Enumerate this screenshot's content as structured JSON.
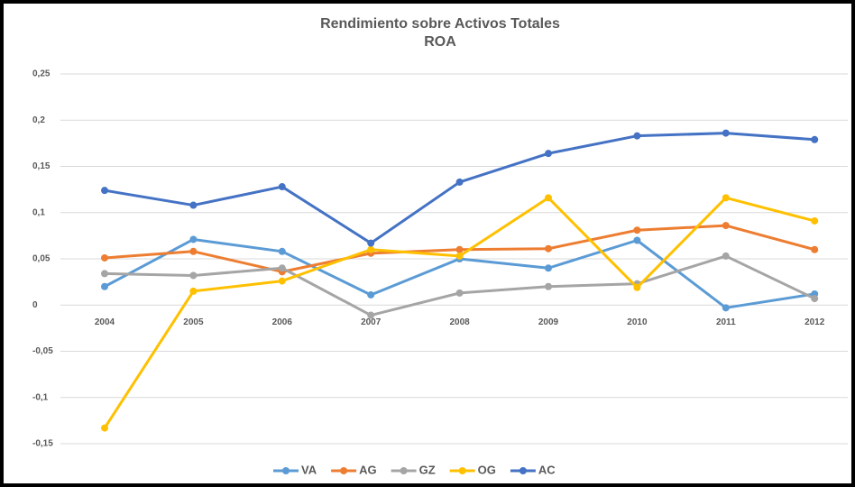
{
  "chart_data": {
    "type": "line",
    "title": "Rendimiento sobre Activos Totales",
    "subtitle": "ROA",
    "categories": [
      "2004",
      "2005",
      "2006",
      "2007",
      "2008",
      "2009",
      "2010",
      "2011",
      "2012"
    ],
    "series": [
      {
        "name": "VA",
        "color": "#5b9bd5",
        "values": [
          0.02,
          0.071,
          0.058,
          0.011,
          0.05,
          0.04,
          0.07,
          -0.003,
          0.012
        ]
      },
      {
        "name": "AG",
        "color": "#ed7d31",
        "values": [
          0.051,
          0.058,
          0.036,
          0.056,
          0.06,
          0.061,
          0.081,
          0.086,
          0.06
        ]
      },
      {
        "name": "GZ",
        "color": "#a5a5a5",
        "values": [
          0.034,
          0.032,
          0.04,
          -0.011,
          0.013,
          0.02,
          0.023,
          0.053,
          0.007
        ]
      },
      {
        "name": "OG",
        "color": "#ffc000",
        "values": [
          -0.133,
          0.015,
          0.026,
          0.06,
          0.053,
          0.116,
          0.019,
          0.116,
          0.091
        ]
      },
      {
        "name": "AC",
        "color": "#4472c4",
        "values": [
          0.124,
          0.108,
          0.128,
          0.067,
          0.133,
          0.164,
          0.183,
          0.186,
          0.179
        ]
      }
    ],
    "ylim": [
      -0.15,
      0.25
    ],
    "yticks": [
      {
        "value": -0.15,
        "label": "-0,15"
      },
      {
        "value": -0.1,
        "label": "-0,1"
      },
      {
        "value": -0.05,
        "label": "-0,05"
      },
      0,
      {
        "value": 0.05,
        "label": "0,05"
      },
      {
        "value": 0.1,
        "label": "0,1"
      },
      {
        "value": 0.15,
        "label": "0,15"
      },
      {
        "value": 0.2,
        "label": "0,2"
      },
      {
        "value": 0.25,
        "label": "0,25"
      }
    ],
    "grid": true,
    "legend": "bottom"
  }
}
